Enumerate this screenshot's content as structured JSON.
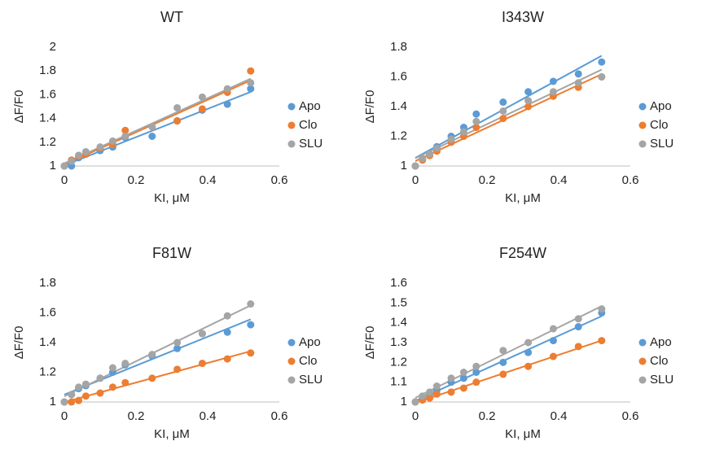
{
  "chart_data": [
    {
      "type": "scatter",
      "title": "WT",
      "xlabel": "KI, μM",
      "ylabel": "ΔF/F0",
      "trendline": "linear",
      "legend": "right",
      "xlim": [
        0,
        0.6
      ],
      "xticks": [
        0,
        0.2,
        0.4,
        0.6
      ],
      "ylim": [
        1,
        2
      ],
      "yticks": [
        1,
        1.2,
        1.4,
        1.6,
        1.8,
        2
      ],
      "x": [
        0,
        0.02,
        0.04,
        0.06,
        0.1,
        0.135,
        0.17,
        0.245,
        0.315,
        0.385,
        0.455,
        0.52
      ],
      "series": [
        {
          "name": "Apo",
          "color": "#5b9bd5",
          "values": [
            1.0,
            1.0,
            1.07,
            1.1,
            1.13,
            1.16,
            1.24,
            1.25,
            1.38,
            1.47,
            1.52,
            1.65
          ]
        },
        {
          "name": "Clo",
          "color": "#ed7d31",
          "values": [
            1.0,
            1.05,
            1.08,
            1.1,
            1.15,
            1.18,
            1.3,
            1.33,
            1.38,
            1.48,
            1.62,
            1.8
          ]
        },
        {
          "name": "SLU",
          "color": "#a5a5a5",
          "values": [
            1.0,
            1.04,
            1.09,
            1.12,
            1.16,
            1.21,
            1.25,
            1.33,
            1.49,
            1.58,
            1.65,
            1.7
          ]
        }
      ]
    },
    {
      "type": "scatter",
      "title": "I343W",
      "xlabel": "KI, μM",
      "ylabel": "ΔF/F0",
      "trendline": "linear",
      "legend": "right",
      "xlim": [
        0,
        0.6
      ],
      "xticks": [
        0,
        0.2,
        0.4,
        0.6
      ],
      "ylim": [
        1,
        1.8
      ],
      "yticks": [
        1,
        1.2,
        1.4,
        1.6,
        1.8
      ],
      "x": [
        0,
        0.02,
        0.04,
        0.06,
        0.1,
        0.135,
        0.17,
        0.245,
        0.315,
        0.385,
        0.455,
        0.52
      ],
      "series": [
        {
          "name": "Apo",
          "color": "#5b9bd5",
          "values": [
            1.0,
            1.05,
            1.08,
            1.13,
            1.2,
            1.26,
            1.35,
            1.43,
            1.5,
            1.57,
            1.62,
            1.7
          ]
        },
        {
          "name": "Clo",
          "color": "#ed7d31",
          "values": [
            1.0,
            1.04,
            1.07,
            1.1,
            1.16,
            1.2,
            1.26,
            1.32,
            1.4,
            1.47,
            1.53,
            1.6
          ]
        },
        {
          "name": "SLU",
          "color": "#a5a5a5",
          "values": [
            1.0,
            1.05,
            1.08,
            1.12,
            1.18,
            1.23,
            1.3,
            1.37,
            1.44,
            1.5,
            1.56,
            1.6
          ]
        }
      ]
    },
    {
      "type": "scatter",
      "title": "F81W",
      "xlabel": "KI, μM",
      "ylabel": "ΔF/F0",
      "trendline": "linear",
      "legend": "right",
      "xlim": [
        0,
        0.6
      ],
      "xticks": [
        0,
        0.2,
        0.4,
        0.6
      ],
      "ylim": [
        1,
        1.8
      ],
      "yticks": [
        1,
        1.2,
        1.4,
        1.6,
        1.8
      ],
      "x": [
        0,
        0.02,
        0.04,
        0.06,
        0.1,
        0.135,
        0.17,
        0.245,
        0.315,
        0.385,
        0.455,
        0.52
      ],
      "series": [
        {
          "name": "Apo",
          "color": "#5b9bd5",
          "values": [
            1.0,
            1.05,
            1.09,
            1.11,
            1.16,
            1.2,
            1.25,
            1.31,
            1.36,
            1.46,
            1.47,
            1.52
          ]
        },
        {
          "name": "Clo",
          "color": "#ed7d31",
          "values": [
            1.0,
            1.0,
            1.01,
            1.04,
            1.06,
            1.1,
            1.13,
            1.16,
            1.22,
            1.26,
            1.29,
            1.33
          ]
        },
        {
          "name": "SLU",
          "color": "#a5a5a5",
          "values": [
            1.0,
            1.05,
            1.1,
            1.12,
            1.16,
            1.23,
            1.26,
            1.32,
            1.4,
            1.46,
            1.58,
            1.66
          ]
        }
      ]
    },
    {
      "type": "scatter",
      "title": "F254W",
      "xlabel": "KI, μM",
      "ylabel": "ΔF/F0",
      "trendline": "linear",
      "legend": "right",
      "xlim": [
        0,
        0.6
      ],
      "xticks": [
        0,
        0.2,
        0.4,
        0.6
      ],
      "ylim": [
        1,
        1.6
      ],
      "yticks": [
        1,
        1.1,
        1.2,
        1.3,
        1.4,
        1.5,
        1.6
      ],
      "x": [
        0,
        0.02,
        0.04,
        0.06,
        0.1,
        0.135,
        0.17,
        0.245,
        0.315,
        0.385,
        0.455,
        0.52
      ],
      "series": [
        {
          "name": "Apo",
          "color": "#5b9bd5",
          "values": [
            1.0,
            1.02,
            1.04,
            1.06,
            1.1,
            1.12,
            1.15,
            1.2,
            1.25,
            1.31,
            1.38,
            1.45
          ]
        },
        {
          "name": "Clo",
          "color": "#ed7d31",
          "values": [
            1.0,
            1.01,
            1.02,
            1.04,
            1.05,
            1.07,
            1.1,
            1.14,
            1.18,
            1.23,
            1.28,
            1.31
          ]
        },
        {
          "name": "SLU",
          "color": "#a5a5a5",
          "values": [
            1.0,
            1.03,
            1.05,
            1.08,
            1.12,
            1.15,
            1.18,
            1.26,
            1.3,
            1.37,
            1.42,
            1.47
          ]
        }
      ]
    }
  ]
}
